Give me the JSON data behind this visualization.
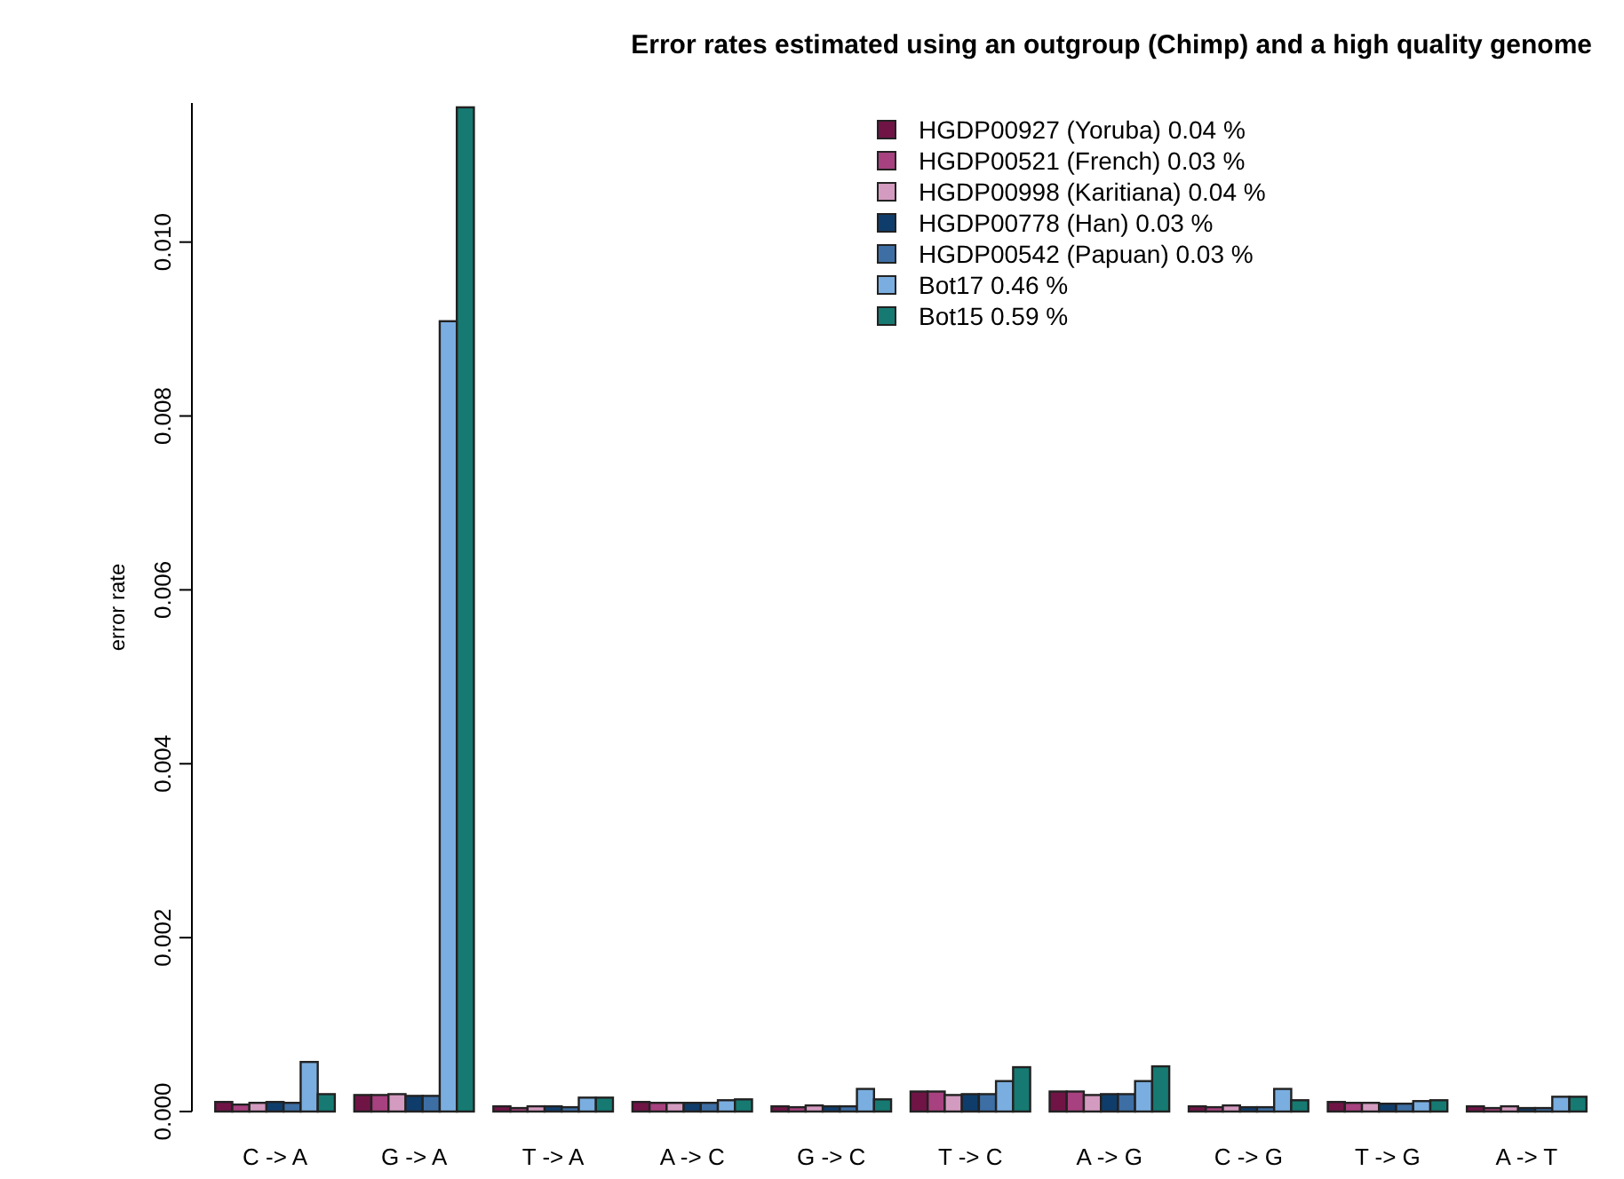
{
  "chart_data": {
    "type": "bar",
    "title": "Error rates estimated using an outgroup (Chimp) and a high quality genome",
    "ylabel": "error rate",
    "categories": [
      "C -> A",
      "G -> A",
      "T -> A",
      "A -> C",
      "G -> C",
      "T -> C",
      "A -> G",
      "C -> G",
      "T -> G",
      "A -> T"
    ],
    "series": [
      {
        "name": "HGDP00927 (Yoruba) 0.04 %",
        "color": "#701446",
        "values": [
          0.00011,
          0.00019,
          6e-05,
          0.00011,
          6e-05,
          0.00023,
          0.00023,
          6e-05,
          0.00011,
          6e-05
        ]
      },
      {
        "name": "HGDP00521 (French) 0.03 %",
        "color": "#a8417f",
        "values": [
          8e-05,
          0.00019,
          4e-05,
          0.0001,
          5e-05,
          0.00023,
          0.00023,
          5e-05,
          0.0001,
          4e-05
        ]
      },
      {
        "name": "HGDP00998 (Karitiana) 0.04 %",
        "color": "#d49bc0",
        "values": [
          0.0001,
          0.0002,
          6e-05,
          0.0001,
          7e-05,
          0.00019,
          0.00019,
          7e-05,
          0.0001,
          6e-05
        ]
      },
      {
        "name": "HGDP00778 (Han) 0.03 %",
        "color": "#0f3d6b",
        "values": [
          0.00011,
          0.00018,
          6e-05,
          0.0001,
          6e-05,
          0.0002,
          0.0002,
          5e-05,
          9e-05,
          4e-05
        ]
      },
      {
        "name": "HGDP00542 (Papuan) 0.03 %",
        "color": "#3d6fa5",
        "values": [
          0.0001,
          0.00018,
          5e-05,
          0.0001,
          6e-05,
          0.0002,
          0.0002,
          5e-05,
          9e-05,
          4e-05
        ]
      },
      {
        "name": "Bot17 0.46 %",
        "color": "#7aaee0",
        "values": [
          0.00057,
          0.00909,
          0.00016,
          0.00013,
          0.00026,
          0.00035,
          0.00035,
          0.00026,
          0.00012,
          0.00017
        ]
      },
      {
        "name": "Bot15 0.59 %",
        "color": "#167a72",
        "values": [
          0.0002,
          0.01155,
          0.00016,
          0.00014,
          0.00014,
          0.00051,
          0.00052,
          0.00013,
          0.00013,
          0.00017
        ]
      }
    ],
    "ylim": [
      0,
      0.0116
    ],
    "yticks": [
      {
        "value": 0,
        "label": "0.000"
      },
      {
        "value": 0.002,
        "label": "0.002"
      },
      {
        "value": 0.004,
        "label": "0.004"
      },
      {
        "value": 0.006,
        "label": "0.006"
      },
      {
        "value": 0.008,
        "label": "0.008"
      },
      {
        "value": 0.01,
        "label": "0.010"
      }
    ],
    "grid": false,
    "legend": "top right"
  }
}
